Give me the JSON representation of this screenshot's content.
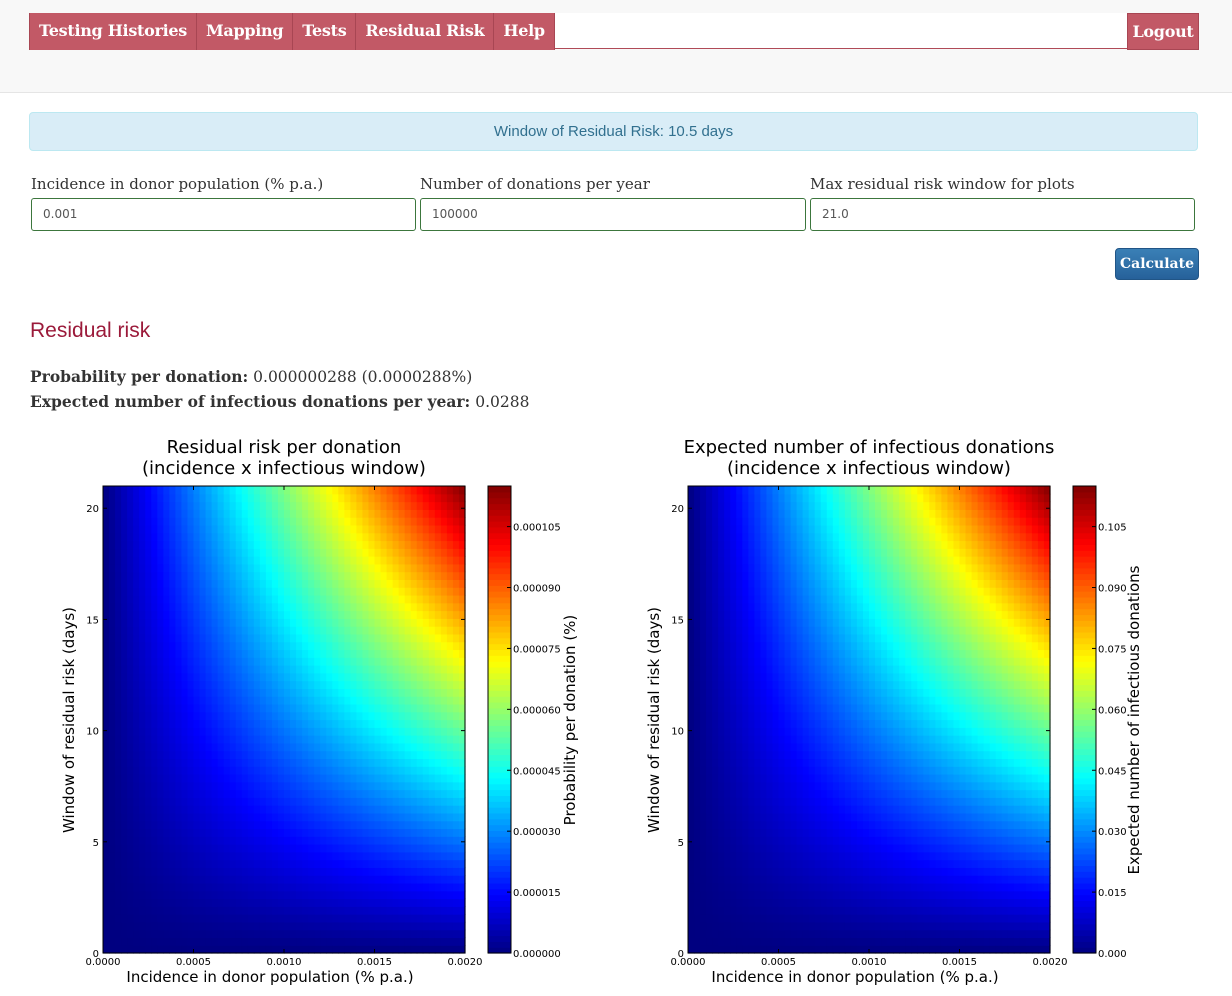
{
  "nav": {
    "items": [
      "Testing Histories",
      "Mapping",
      "Tests",
      "Residual Risk",
      "Help"
    ],
    "logout": "Logout"
  },
  "alert": {
    "text": "Window of Residual Risk: 10.5 days"
  },
  "form": {
    "fields": [
      {
        "label": "Incidence in donor population (% p.a.)",
        "value": "0.001"
      },
      {
        "label": "Number of donations per year",
        "value": "100000"
      },
      {
        "label": "Max residual risk window for plots",
        "value": "21.0"
      }
    ],
    "calculate_label": "Calculate"
  },
  "results": {
    "title": "Residual risk",
    "probability_label": "Probability per donation:",
    "probability_value": " 0.000000288 (0.0000288%)",
    "expected_label": "Expected number of infectious donations per year:",
    "expected_value": " 0.0288"
  },
  "chart_data": [
    {
      "type": "heatmap",
      "title": [
        "Residual risk per donation",
        "(incidence x infectious window)"
      ],
      "xlabel": "Incidence in donor population (% p.a.)",
      "ylabel": "Window of residual risk (days)",
      "colorbar_label": "Probability per donation (%)",
      "colormap": "jet",
      "xlim": [
        0,
        0.002
      ],
      "ylim": [
        0,
        21
      ],
      "xticks": [
        "0.0000",
        "0.0005",
        "0.0010",
        "0.0015",
        "0.0020"
      ],
      "yticks": [
        "0",
        "5",
        "10",
        "15",
        "20"
      ],
      "zlim": [
        0,
        0.000115
      ],
      "cbar_ticks": [
        "0.000000",
        "0.000015",
        "0.000030",
        "0.000045",
        "0.000060",
        "0.000075",
        "0.000090",
        "0.000105"
      ],
      "formula": "incidence x window / 365"
    },
    {
      "type": "heatmap",
      "title": [
        "Expected number of infectious donations",
        "(incidence x infectious window)"
      ],
      "xlabel": "Incidence in donor population (% p.a.)",
      "ylabel": "Window of residual risk (days)",
      "colorbar_label": "Expected number of infectious donations",
      "colormap": "jet",
      "xlim": [
        0,
        0.002
      ],
      "ylim": [
        0,
        21
      ],
      "xticks": [
        "0.0000",
        "0.0005",
        "0.0010",
        "0.0015",
        "0.0020"
      ],
      "yticks": [
        "0",
        "5",
        "10",
        "15",
        "20"
      ],
      "zlim": [
        0,
        0.115
      ],
      "cbar_ticks": [
        "0.000",
        "0.015",
        "0.030",
        "0.045",
        "0.060",
        "0.075",
        "0.090",
        "0.105"
      ],
      "formula": "incidence x window / 365 x donations"
    }
  ]
}
